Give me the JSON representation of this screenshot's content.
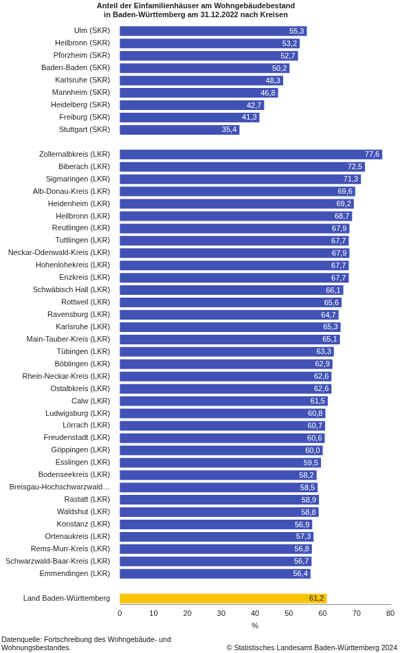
{
  "chart_data": {
    "type": "bar",
    "orientation": "horizontal",
    "title": "Anteil der Einfamilienhäuser am Wohngebäudebestand\nin Baden-Württemberg am 31.12.2022 nach Kreisen",
    "x_label": "%",
    "annotations": [
      "Datenquelle: Fortschreibung des Wohngebäude- und Wohnungsbestandes.",
      "© Statistisches Landesamt Baden-Württemberg 2024"
    ],
    "categories": [
      "Ulm (SKR)",
      "Heilbronn (SKR)",
      "Pforzheim (SKR)",
      "Baden-Baden (SKR)",
      "Karlsruhe (SKR)",
      "Mannheim (SKR)",
      "Heidelberg (SKR)",
      "Freiburg (SKR)",
      "Stuttgart (SKR)",
      null,
      "Zollernalbkreis (LKR)",
      "Biberach (LKR)",
      "Sigmaringen (LKR)",
      "Alb-Donau-Kreis (LKR)",
      "Heidenheim (LKR)",
      "Heilbronn (LKR)",
      "Reutlingen (LKR)",
      "Tuttlingen (LKR)",
      "Neckar-Odenwald-Kreis (LKR)",
      "Hohenlohekreis (LKR)",
      "Enzkreis (LKR)",
      "Schwäbisch Hall (LKR)",
      "Rottweil (LKR)",
      "Ravensburg (LKR)",
      "Karlsruhe (LKR)",
      "Main-Tauber-Kreis (LKR)",
      "Tübingen (LKR)",
      "Böblingen (LKR)",
      "Rhein-Neckar-Kreis (LKR)",
      "Ostalbkreis (LKR)",
      "Calw (LKR)",
      "Ludwigsburg (LKR)",
      "Lörrach (LKR)",
      "Freudenstadt (LKR)",
      "Göppingen (LKR)",
      "Esslingen (LKR)",
      "Bodenseekreis (LKR)",
      "Breisgau-Hochschwarzwald…",
      "Rastatt (LKR)",
      "Waldshut (LKR)",
      "Konstanz (LKR)",
      "Ortenaukreis (LKR)",
      "Rems-Murr-Kreis (LKR)",
      "Schwarzwald-Baar-Kreis (LKR)",
      "Emmendingen (LKR)",
      null,
      "Land Baden-Württemberg"
    ],
    "values": [
      55.3,
      53.2,
      52.7,
      50.2,
      48.3,
      46.8,
      42.7,
      41.3,
      35.4,
      null,
      77.6,
      72.5,
      71.3,
      69.6,
      69.2,
      68.7,
      67.9,
      67.7,
      67.9,
      67.7,
      67.7,
      66.1,
      65.6,
      64.7,
      65.3,
      65.1,
      63.3,
      62.9,
      62.6,
      62.6,
      61.5,
      60.8,
      60.7,
      60.6,
      60.0,
      59.5,
      58.2,
      58.5,
      58.9,
      58.8,
      56.9,
      57.3,
      56.8,
      56.7,
      56.4,
      null,
      61.2
    ],
    "value_labels": [
      "55,3",
      "53,2",
      "52,7",
      "50,2",
      "48,3",
      "46,8",
      "42,7",
      "41,3",
      "35,4",
      null,
      "77,6",
      "72,5",
      "71,3",
      "69,6",
      "69,2",
      "68,7",
      "67,9",
      "67,7",
      "67,9",
      "67,7",
      "67,7",
      "66,1",
      "65,6",
      "64,7",
      "65,3",
      "65,1",
      "63,3",
      "62,9",
      "62,6",
      "62,6",
      "61,5",
      "60,8",
      "60,7",
      "60,6",
      "60,0",
      "59,5",
      "58,2",
      "58,5",
      "58,9",
      "58,8",
      "56,9",
      "57,3",
      "56,8",
      "56,7",
      "56,4",
      null,
      "61,2"
    ],
    "colors": [
      "#4152b6",
      "#4152b6",
      "#4152b6",
      "#4152b6",
      "#4152b6",
      "#4152b6",
      "#4152b6",
      "#4152b6",
      "#4152b6",
      null,
      "#4152b6",
      "#4152b6",
      "#4152b6",
      "#4152b6",
      "#4152b6",
      "#4152b6",
      "#4152b6",
      "#4152b6",
      "#4152b6",
      "#4152b6",
      "#4152b6",
      "#4152b6",
      "#4152b6",
      "#4152b6",
      "#4152b6",
      "#4152b6",
      "#4152b6",
      "#4152b6",
      "#4152b6",
      "#4152b6",
      "#4152b6",
      "#4152b6",
      "#4152b6",
      "#4152b6",
      "#4152b6",
      "#4152b6",
      "#4152b6",
      "#4152b6",
      "#4152b6",
      "#4152b6",
      "#4152b6",
      "#4152b6",
      "#4152b6",
      "#4152b6",
      "#4152b6",
      null,
      "#f7c300"
    ],
    "xlim": [
      0,
      80
    ],
    "xticks": [
      0,
      10,
      20,
      30,
      40,
      50,
      60,
      70,
      80
    ],
    "grid": false,
    "data_labels": true
  }
}
